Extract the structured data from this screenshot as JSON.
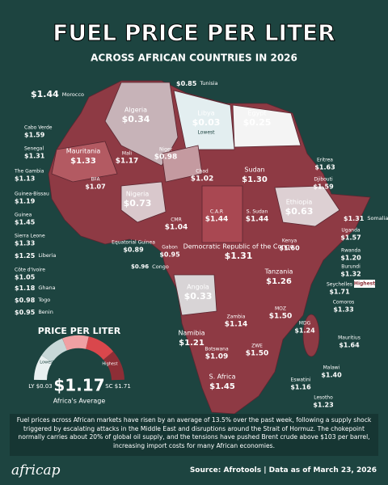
{
  "header": {
    "title": "FUEL PRICE PER LITER",
    "subtitle": "ACROSS AFRICAN COUNTRIES IN 2026"
  },
  "countries": [
    {
      "name": "Morocco",
      "price": "$1.44"
    },
    {
      "name": "Tunisia",
      "price": "$0.85"
    },
    {
      "name": "Algeria",
      "price": "$0.34"
    },
    {
      "name": "Libya",
      "price": "$0.03",
      "tag": "Lowest"
    },
    {
      "name": "Egypt",
      "price": "$0.25"
    },
    {
      "name": "Cabo Verde",
      "price": "$1.59"
    },
    {
      "name": "Senegal",
      "price": "$1.31"
    },
    {
      "name": "Mauritania",
      "price": "$1.33"
    },
    {
      "name": "Mali",
      "price": "$1.17"
    },
    {
      "name": "Niger",
      "price": "$0.98"
    },
    {
      "name": "The Gambia",
      "price": "$1.13"
    },
    {
      "name": "Guinea-Bissau",
      "price": "$1.19"
    },
    {
      "name": "Guinea",
      "price": "$1.45"
    },
    {
      "name": "Sierra Leone",
      "price": "$1.33"
    },
    {
      "name": "Liberia",
      "price": "$1.25"
    },
    {
      "name": "Côte d'Ivoire",
      "price": "$1.05"
    },
    {
      "name": "Ghana",
      "price": "$1.18"
    },
    {
      "name": "Togo",
      "price": "$0.98"
    },
    {
      "name": "Benin",
      "price": "$0.95"
    },
    {
      "name": "BFA",
      "price": "$1.07"
    },
    {
      "name": "Nigeria",
      "price": "$0.73"
    },
    {
      "name": "Chad",
      "price": "$1.02"
    },
    {
      "name": "Sudan",
      "price": "$1.30"
    },
    {
      "name": "Eritrea",
      "price": "$1.63"
    },
    {
      "name": "Djibouti",
      "price": "$1.59"
    },
    {
      "name": "Ethiopia",
      "price": "$0.63"
    },
    {
      "name": "Somalia",
      "price": "$1.31"
    },
    {
      "name": "C.A.R",
      "price": "$1.44"
    },
    {
      "name": "S. Sudan",
      "price": "$1.44"
    },
    {
      "name": "CMR",
      "price": "$1.04"
    },
    {
      "name": "Uganda",
      "price": "$1.57"
    },
    {
      "name": "Kenya",
      "price": "$1.60"
    },
    {
      "name": "Rwanda",
      "price": "$1.20"
    },
    {
      "name": "Burundi",
      "price": "$1.32"
    },
    {
      "name": "Equatorial Guinea",
      "price": "$0.89"
    },
    {
      "name": "Gabon",
      "price": "$0.95"
    },
    {
      "name": "Congo",
      "price": "$0.96"
    },
    {
      "name": "Democratic Republic of the Congo",
      "price": "$1.31"
    },
    {
      "name": "Tanzania",
      "price": "$1.26"
    },
    {
      "name": "Seychelles",
      "price": "$1.71",
      "tag": "Highest"
    },
    {
      "name": "Comoros",
      "price": "$1.33"
    },
    {
      "name": "Angola",
      "price": "$0.33"
    },
    {
      "name": "Zambia",
      "price": "$1.14"
    },
    {
      "name": "MOZ",
      "price": "$1.50"
    },
    {
      "name": "MDG",
      "price": "$1.24"
    },
    {
      "name": "Mauritius",
      "price": "$1.64"
    },
    {
      "name": "Namibia",
      "price": "$1.21"
    },
    {
      "name": "ZWE",
      "price": "$1.50"
    },
    {
      "name": "Botswana",
      "price": "$1.09"
    },
    {
      "name": "Malawi",
      "price": "$1.40"
    },
    {
      "name": "Eswatini",
      "price": "$1.16"
    },
    {
      "name": "S. Africa",
      "price": "$1.45"
    },
    {
      "name": "Lesotho",
      "price": "$1.23"
    }
  ],
  "gauge": {
    "title": "PRICE PER LITER",
    "lowest_label": "Lowest",
    "lowest_value": "LY $0.03",
    "highest_label": "Highest",
    "highest_value": "SC $1.71",
    "average": "$1.17",
    "average_label": "Africa's Average"
  },
  "footer": {
    "text": "Fuel prices across African markets have risen by an average of 13.5% over the past week, following a supply shock triggered by escalating attacks in the Middle East and disruptions around the Strait of Hormuz. The chokepoint normally carries about 20% of global oil supply, and the tensions have pushed Brent crude above $103 per barrel, increasing import costs for many African economies.",
    "logo": "africap",
    "source": "Source: Afrotools | Data as of March 23, 2026"
  }
}
